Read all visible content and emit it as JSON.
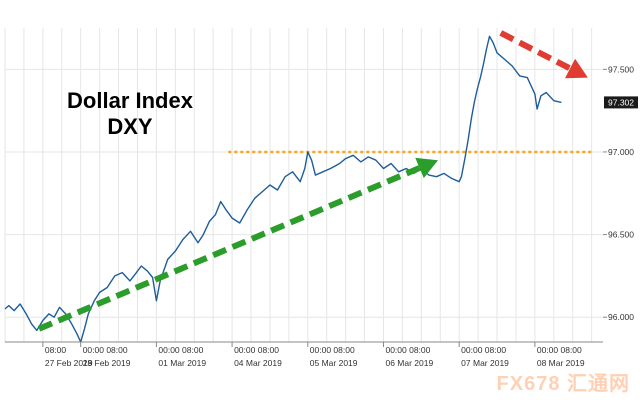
{
  "chart_data": {
    "type": "line",
    "title_line1": "Dollar Index",
    "title_line2": "DXY",
    "last_price_label": "97.302",
    "ylim": [
      95.85,
      97.75
    ],
    "y_ticks": [
      {
        "value": 96.0,
        "label": "96.000"
      },
      {
        "value": 96.5,
        "label": "96.500"
      },
      {
        "value": 97.0,
        "label": "97.000"
      },
      {
        "value": 97.5,
        "label": "97.500"
      }
    ],
    "x_ticks": [
      {
        "x": 0.5,
        "time": "08:00",
        "date": "27 Feb 2019"
      },
      {
        "x": 1.0,
        "time": "00:00 08:00",
        "date": "28 Feb 2019"
      },
      {
        "x": 2.0,
        "time": "00:00 08:00",
        "date": "01 Mar 2019"
      },
      {
        "x": 3.0,
        "time": "00:00 08:00",
        "date": "04 Mar 2019"
      },
      {
        "x": 4.0,
        "time": "00:00 08:00",
        "date": "05 Mar 2019"
      },
      {
        "x": 5.0,
        "time": "00:00 08:00",
        "date": "06 Mar 2019"
      },
      {
        "x": 6.0,
        "time": "00:00 08:00",
        "date": "07 Mar 2019"
      },
      {
        "x": 7.0,
        "time": "00:00 08:00",
        "date": "08 Mar 2019"
      }
    ],
    "series": [
      {
        "color": "#1f5d99",
        "points": [
          [
            0.0,
            96.05
          ],
          [
            0.05,
            96.07
          ],
          [
            0.12,
            96.04
          ],
          [
            0.2,
            96.08
          ],
          [
            0.28,
            96.02
          ],
          [
            0.35,
            95.96
          ],
          [
            0.42,
            95.92
          ],
          [
            0.5,
            95.98
          ],
          [
            0.58,
            96.02
          ],
          [
            0.65,
            96.0
          ],
          [
            0.72,
            96.06
          ],
          [
            0.8,
            96.02
          ],
          [
            0.88,
            95.96
          ],
          [
            0.95,
            95.9
          ],
          [
            1.0,
            95.85
          ],
          [
            1.05,
            95.93
          ],
          [
            1.1,
            96.02
          ],
          [
            1.18,
            96.1
          ],
          [
            1.25,
            96.15
          ],
          [
            1.35,
            96.18
          ],
          [
            1.45,
            96.25
          ],
          [
            1.55,
            96.27
          ],
          [
            1.65,
            96.22
          ],
          [
            1.72,
            96.26
          ],
          [
            1.8,
            96.31
          ],
          [
            1.88,
            96.28
          ],
          [
            1.95,
            96.24
          ],
          [
            2.0,
            96.1
          ],
          [
            2.05,
            96.22
          ],
          [
            2.15,
            96.35
          ],
          [
            2.25,
            96.4
          ],
          [
            2.35,
            96.47
          ],
          [
            2.45,
            96.52
          ],
          [
            2.55,
            96.45
          ],
          [
            2.62,
            96.5
          ],
          [
            2.7,
            96.58
          ],
          [
            2.78,
            96.62
          ],
          [
            2.85,
            96.7
          ],
          [
            2.92,
            96.65
          ],
          [
            3.0,
            96.6
          ],
          [
            3.1,
            96.57
          ],
          [
            3.2,
            96.65
          ],
          [
            3.3,
            96.72
          ],
          [
            3.4,
            96.76
          ],
          [
            3.5,
            96.8
          ],
          [
            3.6,
            96.77
          ],
          [
            3.7,
            96.85
          ],
          [
            3.8,
            96.88
          ],
          [
            3.9,
            96.82
          ],
          [
            3.96,
            96.9
          ],
          [
            4.0,
            97.0
          ],
          [
            4.05,
            96.95
          ],
          [
            4.1,
            96.86
          ],
          [
            4.2,
            96.88
          ],
          [
            4.3,
            96.9
          ],
          [
            4.42,
            96.93
          ],
          [
            4.5,
            96.96
          ],
          [
            4.6,
            96.98
          ],
          [
            4.7,
            96.94
          ],
          [
            4.8,
            96.97
          ],
          [
            4.9,
            96.95
          ],
          [
            5.0,
            96.9
          ],
          [
            5.1,
            96.93
          ],
          [
            5.2,
            96.88
          ],
          [
            5.3,
            96.9
          ],
          [
            5.4,
            96.87
          ],
          [
            5.5,
            96.9
          ],
          [
            5.6,
            96.86
          ],
          [
            5.7,
            96.85
          ],
          [
            5.8,
            96.87
          ],
          [
            5.9,
            96.84
          ],
          [
            6.0,
            96.82
          ],
          [
            6.03,
            96.85
          ],
          [
            6.08,
            96.97
          ],
          [
            6.12,
            97.08
          ],
          [
            6.16,
            97.2
          ],
          [
            6.2,
            97.3
          ],
          [
            6.24,
            97.38
          ],
          [
            6.28,
            97.45
          ],
          [
            6.32,
            97.53
          ],
          [
            6.36,
            97.62
          ],
          [
            6.4,
            97.7
          ],
          [
            6.45,
            97.66
          ],
          [
            6.5,
            97.6
          ],
          [
            6.6,
            97.56
          ],
          [
            6.7,
            97.52
          ],
          [
            6.8,
            97.46
          ],
          [
            6.9,
            97.45
          ],
          [
            6.95,
            97.4
          ],
          [
            7.0,
            97.35
          ],
          [
            7.03,
            97.26
          ],
          [
            7.08,
            97.34
          ],
          [
            7.15,
            97.36
          ],
          [
            7.25,
            97.31
          ],
          [
            7.35,
            97.3
          ]
        ]
      }
    ],
    "annotations": [
      {
        "type": "dotted-line",
        "color": "#f5a623",
        "y": 97.0,
        "x_start": 2.95,
        "x_end": 7.75
      },
      {
        "type": "dashed-arrow",
        "color": "#2a9d2a",
        "from": [
          0.45,
          95.93
        ],
        "to": [
          5.72,
          96.95
        ]
      },
      {
        "type": "dashed-arrow",
        "color": "#e03c31",
        "from": [
          6.55,
          97.72
        ],
        "to": [
          7.7,
          97.45
        ]
      }
    ],
    "watermark": "FX678 汇通网",
    "grid": true
  }
}
